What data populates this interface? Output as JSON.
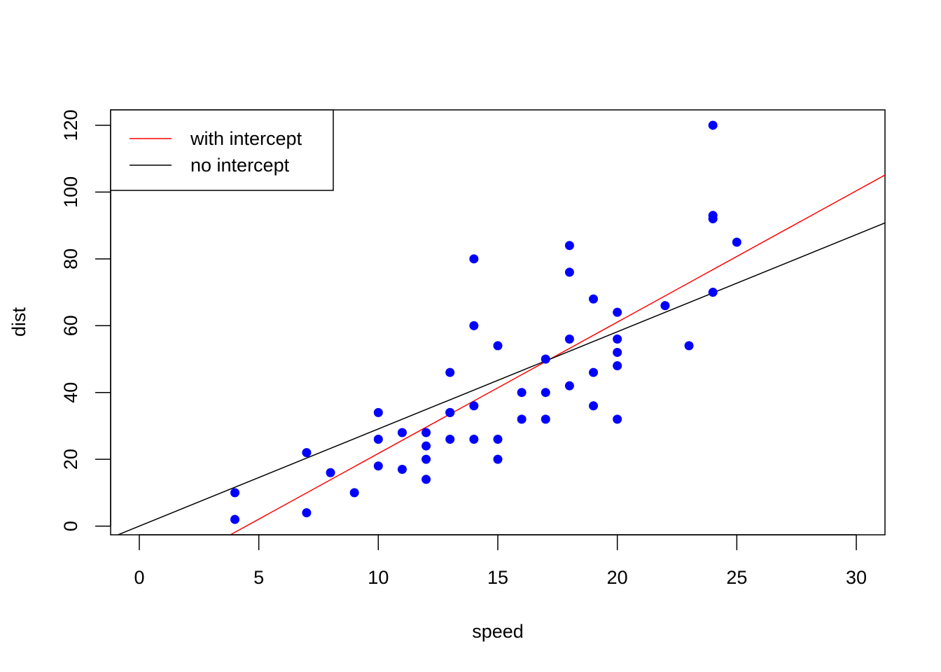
{
  "chart_data": {
    "type": "scatter",
    "title": "",
    "xlabel": "speed",
    "ylabel": "dist",
    "xlim": [
      -1.2,
      31.2
    ],
    "ylim": [
      -2.6,
      124.6
    ],
    "x_ticks": [
      0,
      5,
      10,
      15,
      20,
      25,
      30
    ],
    "y_ticks": [
      0,
      20,
      40,
      60,
      80,
      100,
      120
    ],
    "grid": false,
    "points": {
      "color": "#0000ff",
      "x": [
        4,
        4,
        7,
        7,
        8,
        9,
        10,
        10,
        10,
        11,
        11,
        12,
        12,
        12,
        12,
        13,
        13,
        13,
        13,
        14,
        14,
        14,
        14,
        15,
        15,
        15,
        16,
        16,
        17,
        17,
        17,
        18,
        18,
        18,
        18,
        19,
        19,
        19,
        20,
        20,
        20,
        20,
        20,
        22,
        23,
        24,
        24,
        24,
        24,
        25
      ],
      "y": [
        2,
        10,
        4,
        22,
        16,
        10,
        18,
        26,
        34,
        17,
        28,
        14,
        20,
        24,
        28,
        26,
        34,
        34,
        46,
        26,
        36,
        60,
        80,
        20,
        26,
        54,
        32,
        40,
        32,
        40,
        50,
        42,
        56,
        76,
        84,
        36,
        46,
        68,
        32,
        48,
        52,
        56,
        64,
        66,
        54,
        70,
        92,
        93,
        120,
        85
      ]
    },
    "lines": [
      {
        "name": "with intercept",
        "color": "#ff0000",
        "intercept": -17.579,
        "slope": 3.932
      },
      {
        "name": "no intercept",
        "color": "#000000",
        "intercept": 0,
        "slope": 2.909
      }
    ],
    "legend": {
      "position": "top-left",
      "entries": [
        {
          "label": "with intercept",
          "color": "#ff0000"
        },
        {
          "label": "no intercept",
          "color": "#000000"
        }
      ]
    }
  }
}
